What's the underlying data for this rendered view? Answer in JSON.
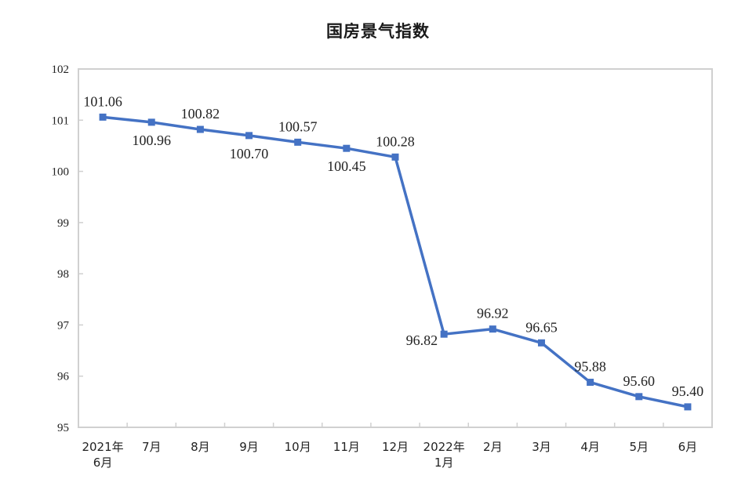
{
  "chart_data": {
    "type": "line",
    "title": "国房景气指数",
    "xlabel": "",
    "ylabel": "",
    "ylim": [
      95,
      102
    ],
    "yticks": [
      95,
      96,
      97,
      98,
      99,
      100,
      101,
      102
    ],
    "grid": false,
    "legend": null,
    "categories": [
      "2021年6月",
      "7月",
      "8月",
      "9月",
      "10月",
      "11月",
      "12月",
      "2022年1月",
      "2月",
      "3月",
      "4月",
      "5月",
      "6月"
    ],
    "category_lines": [
      [
        "2021年",
        "6月"
      ],
      [
        "7月"
      ],
      [
        "8月"
      ],
      [
        "9月"
      ],
      [
        "10月"
      ],
      [
        "11月"
      ],
      [
        "12月"
      ],
      [
        "2022年",
        "1月"
      ],
      [
        "2月"
      ],
      [
        "3月"
      ],
      [
        "4月"
      ],
      [
        "5月"
      ],
      [
        "6月"
      ]
    ],
    "series": [
      {
        "name": "国房景气指数",
        "color": "#4472C4",
        "values": [
          101.06,
          100.96,
          100.82,
          100.7,
          100.57,
          100.45,
          100.28,
          96.82,
          96.92,
          96.65,
          95.88,
          95.6,
          95.4
        ],
        "labels": [
          "101.06",
          "100.96",
          "100.82",
          "100.70",
          "100.57",
          "100.45",
          "100.28",
          "96.82",
          "96.92",
          "96.65",
          "95.88",
          "95.60",
          "95.40"
        ],
        "label_positions": [
          "above",
          "below",
          "above",
          "below",
          "above",
          "below",
          "above",
          "left",
          "above",
          "above",
          "above",
          "above",
          "above"
        ]
      }
    ]
  }
}
